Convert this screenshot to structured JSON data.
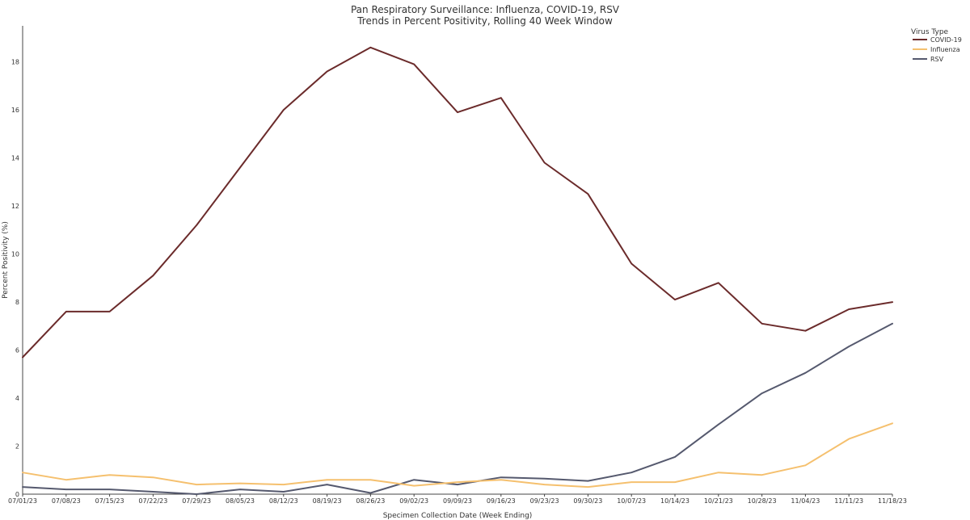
{
  "chart_data": {
    "type": "line",
    "title": "Pan Respiratory Surveillance: Influenza, COVID-19, RSV",
    "subtitle": "Trends in Percent Positivity, Rolling 40 Week Window",
    "xlabel": "Specimen Collection Date (Week Ending)",
    "ylabel": "Percent Positivity (%)",
    "ylim": [
      0,
      19.5
    ],
    "yticks": [
      0,
      2,
      4,
      6,
      8,
      10,
      12,
      14,
      16,
      18
    ],
    "grid": false,
    "legend": {
      "title": "Virus Type",
      "position": "top-right"
    },
    "categories": [
      "07/01/23",
      "07/08/23",
      "07/15/23",
      "07/22/23",
      "07/29/23",
      "08/05/23",
      "08/12/23",
      "08/19/23",
      "08/26/23",
      "09/02/23",
      "09/09/23",
      "09/16/23",
      "09/23/23",
      "09/30/23",
      "10/07/23",
      "10/14/23",
      "10/21/23",
      "10/28/23",
      "11/04/23",
      "11/11/23",
      "11/18/23"
    ],
    "series": [
      {
        "name": "COVID-19",
        "color": "#6b2b2b",
        "values": [
          5.7,
          7.6,
          7.6,
          9.1,
          11.2,
          13.6,
          16.0,
          17.6,
          18.6,
          17.9,
          15.9,
          16.5,
          13.8,
          12.5,
          9.6,
          8.1,
          8.8,
          7.1,
          6.8,
          7.7,
          8.0
        ]
      },
      {
        "name": "Influenza",
        "color": "#f5c06e",
        "values": [
          0.9,
          0.6,
          0.8,
          0.7,
          0.4,
          0.45,
          0.4,
          0.6,
          0.6,
          0.35,
          0.5,
          0.6,
          0.4,
          0.3,
          0.5,
          0.5,
          0.9,
          0.8,
          1.2,
          2.3,
          2.95
        ]
      },
      {
        "name": "RSV",
        "color": "#55596e",
        "values": [
          0.3,
          0.2,
          0.2,
          0.1,
          0.0,
          0.2,
          0.1,
          0.4,
          0.05,
          0.6,
          0.4,
          0.7,
          0.65,
          0.55,
          0.9,
          1.55,
          2.9,
          4.2,
          5.05,
          6.15,
          7.1
        ]
      }
    ]
  }
}
